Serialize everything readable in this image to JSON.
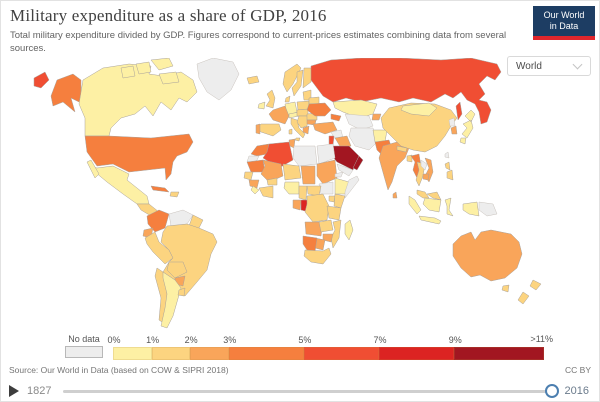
{
  "header": {
    "title": "Military expenditure as a share of GDP, 2016",
    "subtitle": "Total military expenditure divided by GDP. Figures correspond to current-prices estimates combining data from several sources.",
    "logo_line1": "Our World",
    "logo_line2": "in Data",
    "logo_bg": "#1d3d63",
    "logo_accent": "#e0262c"
  },
  "controls": {
    "region_selector": {
      "value": "World"
    }
  },
  "legend": {
    "no_data_label": "No data",
    "no_data_color": "#ededed",
    "end_label": ">11%",
    "bins": [
      {
        "label": "0%",
        "color": "#fdf0a4",
        "span": 1
      },
      {
        "label": "1%",
        "color": "#fcd480",
        "span": 1
      },
      {
        "label": "2%",
        "color": "#f9a55a",
        "span": 1
      },
      {
        "label": "3%",
        "color": "#f57f3e",
        "span": 2
      },
      {
        "label": "5%",
        "color": "#f04e33",
        "span": 2
      },
      {
        "label": "7%",
        "color": "#dc2322",
        "span": 2
      },
      {
        "label": "9%",
        "color": "#a21621",
        "span": 2.4
      }
    ]
  },
  "footer": {
    "source": "Source: Our World in Data (based on COW & SIPRI 2018)",
    "license": "CC BY"
  },
  "timeline": {
    "start_year": "1827",
    "end_year": "2016"
  },
  "chart_data": {
    "type": "heatmap",
    "map_type": "world-choropleth",
    "title": "Military expenditure as a share of GDP, 2016",
    "unit": "% of GDP",
    "year": 2016,
    "bin_edges_percent": [
      0,
      1,
      2,
      3,
      5,
      7,
      9,
      11
    ],
    "bin_colors": [
      "#fdf0a4",
      "#fcd480",
      "#f9a55a",
      "#f57f3e",
      "#f04e33",
      "#dc2322",
      "#a21621"
    ],
    "legend_position": "bottom",
    "countries_by_bin": {
      "0-1%": [
        "Canada",
        "Mexico",
        "Argentina",
        "Germany",
        "Ireland",
        "Kazakhstan",
        "Mongolia",
        "Japan",
        "Afghanistan",
        "Indonesia",
        "Nigeria",
        "Ethiopia",
        "Madagascar",
        "Sierra Leone"
      ],
      "1-2%": [
        "Brazil",
        "Peru",
        "Bolivia",
        "Chile",
        "Uruguay",
        "United Kingdom",
        "Spain",
        "Italy",
        "Norway",
        "Sweden",
        "Finland",
        "Poland",
        "Belarus",
        "Romania",
        "China",
        "Thailand",
        "Malaysia",
        "Philippines",
        "Nepal",
        "Bangladesh",
        "South Africa",
        "Kenya",
        "Tanzania",
        "Zambia",
        "Mozambique",
        "Cameroon",
        "Niger",
        "Senegal",
        "Ghana",
        "New Zealand",
        "Iceland"
      ],
      "2-3%": [
        "France",
        "Portugal",
        "Greece",
        "Bulgaria",
        "Turkey",
        "Iraq",
        "India",
        "Sri Lanka",
        "Vietnam",
        "Cambodia",
        "South Korea",
        "Australia",
        "Ecuador",
        "Paraguay",
        "Tunisia",
        "Mali",
        "Chad",
        "Sudan",
        "Guinea",
        "Gabon",
        "Zimbabwe",
        "Botswana",
        "Kyrgyzstan"
      ],
      "3-5%": [
        "United States",
        "Colombia",
        "Cuba",
        "Ukraine",
        "Armenia",
        "Azerbaijan",
        "Jordan",
        "Pakistan",
        "Myanmar",
        "Morocco",
        "Mauritania",
        "Angola",
        "Namibia"
      ],
      "5-7%": [
        "Russia",
        "Algeria",
        "Israel"
      ],
      "7-9%": [
        "Congo"
      ],
      ">9%": [
        "Saudi Arabia",
        "Oman"
      ]
    },
    "no_data_countries": [
      "Greenland",
      "Venezuela",
      "Iran",
      "Syria",
      "Libya",
      "Egypt",
      "Yemen",
      "Somalia",
      "South Sudan",
      "Eritrea",
      "Western Sahara",
      "North Korea",
      "Turkmenistan",
      "Uzbekistan",
      "Laos",
      "Taiwan",
      "Papua New Guinea"
    ]
  }
}
